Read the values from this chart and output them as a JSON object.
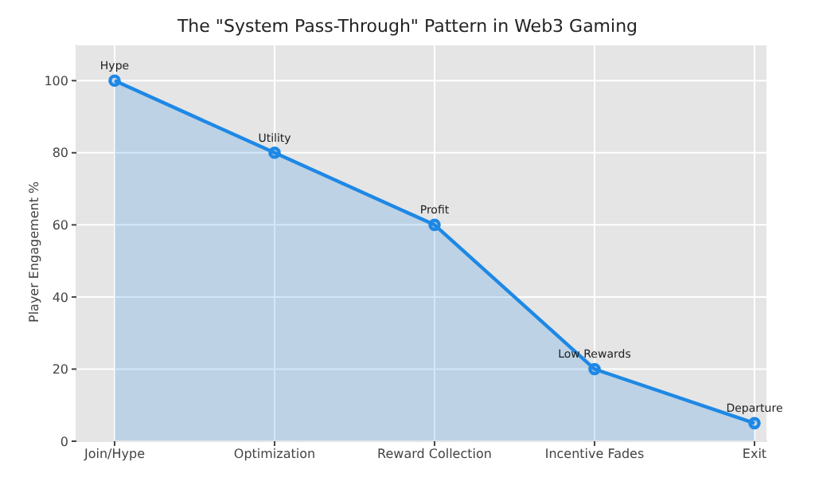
{
  "chart_data": {
    "type": "area",
    "title": "The \"System Pass-Through\" Pattern in Web3 Gaming",
    "ylabel": "Player Engagement %",
    "categories": [
      "Join/Hype",
      "Optimization",
      "Reward Collection",
      "Incentive Fades",
      "Exit"
    ],
    "series": [
      {
        "color": "#1e88e5",
        "values": [
          100,
          80,
          60,
          20,
          5
        ]
      }
    ],
    "ylim": [
      0,
      110
    ],
    "yticks": [
      0,
      20,
      40,
      60,
      80,
      100
    ],
    "grid": true,
    "marker": "circle",
    "annotations": [
      {
        "text": "Hype",
        "x": "Join/Hype",
        "y": 100
      },
      {
        "text": "Utility",
        "x": "Optimization",
        "y": 80
      },
      {
        "text": "Profit",
        "x": "Reward Collection",
        "y": 60
      },
      {
        "text": "Low Rewards",
        "x": "Incentive Fades",
        "y": 20
      },
      {
        "text": "Departure",
        "x": "Exit",
        "y": 5
      }
    ]
  }
}
